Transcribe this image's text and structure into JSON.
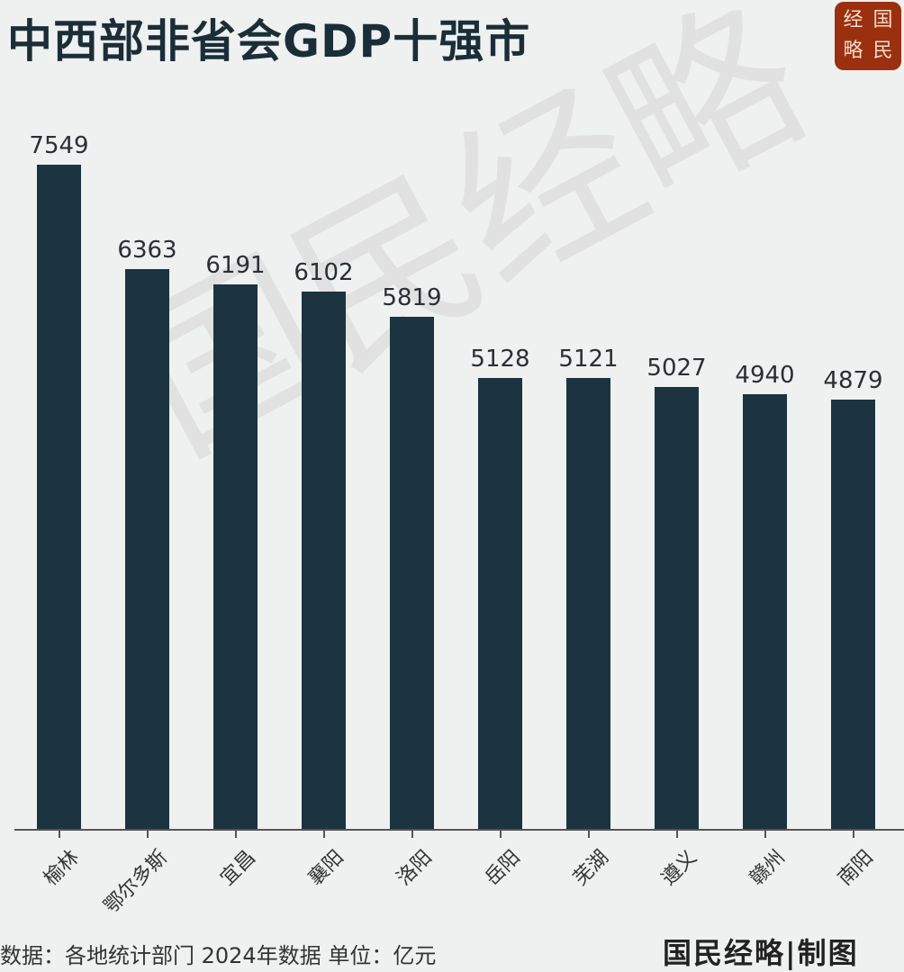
{
  "header": {
    "title": "中西部非省会GDP十强市",
    "logo_chars": [
      "经",
      "国",
      "略",
      "民"
    ]
  },
  "watermark": "国民经略",
  "footer": {
    "source": "数据：各地统计部门 2024年数据  单位：亿元",
    "credit": "国民经略|制图"
  },
  "colors": {
    "bar": "#1b3440",
    "background": "#eff0f0",
    "logo_bg": "#9a3010",
    "title": "#1a2e38"
  },
  "chart_data": {
    "type": "bar",
    "title": "中西部非省会GDP十强市",
    "categories": [
      "榆林",
      "鄂尔多斯",
      "宜昌",
      "襄阳",
      "洛阳",
      "岳阳",
      "芜湖",
      "遵义",
      "赣州",
      "南阳"
    ],
    "values": [
      7549,
      6363,
      6191,
      6102,
      5819,
      5128,
      5121,
      5027,
      4940,
      4879
    ],
    "value_labels": [
      "7549",
      "6363",
      "6191",
      "6102",
      "5819",
      "5128",
      "5121",
      "5027",
      "4940",
      "4879"
    ],
    "xlabel": "",
    "ylabel": "",
    "unit": "亿元",
    "source": "各地统计部门 2024年数据",
    "ylim": [
      0,
      7549
    ],
    "grid": false,
    "legend": null,
    "x_tick_rotation": -45,
    "bar_color": "#1b3440"
  }
}
